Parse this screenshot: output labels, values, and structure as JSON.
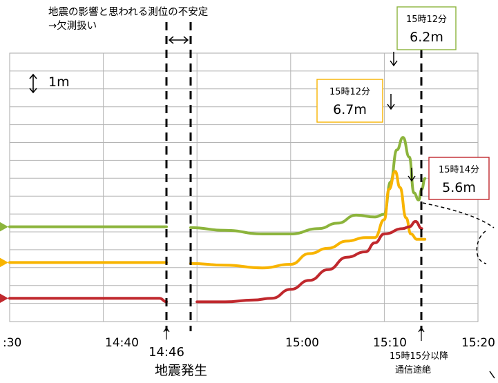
{
  "chart_data": {
    "type": "line",
    "xlim_minutes": [
      14.5,
      15.333
    ],
    "x_ticks": [
      {
        "label": ":30",
        "t": "14:30"
      },
      {
        "label": "14:40",
        "t": "14:40"
      },
      {
        "label": "15:00",
        "t": "15:00"
      },
      {
        "label": "15:10",
        "t": "15:10"
      },
      {
        "label": "15:20",
        "t": "15:20"
      }
    ],
    "scale_label": "1m",
    "series": [
      {
        "color": "#8cb43c",
        "points": [
          [
            "14:30",
            4.3
          ],
          [
            "14:47",
            4.3
          ],
          [
            "14:49",
            4.25
          ],
          [
            "14:53",
            4.1
          ],
          [
            "14:57",
            3.9
          ],
          [
            "15:00",
            3.9
          ],
          [
            "15:03",
            4.2
          ],
          [
            "15:05",
            4.5
          ],
          [
            "15:07",
            4.95
          ],
          [
            "15:09",
            4.85
          ],
          [
            "15:10",
            5.0
          ],
          [
            "15:10:40",
            6.8
          ],
          [
            "15:11:20",
            8.6
          ],
          [
            "15:12",
            9.3
          ],
          [
            "15:12:40",
            8.2
          ],
          [
            "15:13:10",
            6.2
          ],
          [
            "15:13:40",
            5.8
          ],
          [
            "15:14",
            6.4
          ],
          [
            "15:14:20",
            7.0
          ]
        ]
      },
      {
        "color": "#f8b400",
        "points": [
          [
            "14:30",
            2.3
          ],
          [
            "14:47",
            2.3
          ],
          [
            "14:49",
            2.25
          ],
          [
            "14:53",
            2.15
          ],
          [
            "14:57",
            2.0
          ],
          [
            "15:00",
            2.2
          ],
          [
            "15:02",
            2.8
          ],
          [
            "15:04",
            3.1
          ],
          [
            "15:06",
            3.5
          ],
          [
            "15:08",
            3.7
          ],
          [
            "15:09",
            3.7
          ],
          [
            "15:10",
            4.7
          ],
          [
            "15:10:30",
            6.4
          ],
          [
            "15:11:10",
            7.4
          ],
          [
            "15:11:40",
            6.5
          ],
          [
            "15:12:20",
            4.8
          ],
          [
            "15:12:50",
            3.9
          ],
          [
            "15:13:30",
            3.6
          ],
          [
            "15:14:20",
            3.6
          ]
        ]
      },
      {
        "color": "#c0282d",
        "points": [
          [
            "14:30",
            0.3
          ],
          [
            "14:46",
            0.3
          ],
          [
            "14:47",
            0.1
          ],
          [
            "14:50",
            0.1
          ],
          [
            "14:53",
            0.1
          ],
          [
            "14:56",
            0.2
          ],
          [
            "14:58",
            0.3
          ],
          [
            "15:00",
            0.8
          ],
          [
            "15:02",
            1.3
          ],
          [
            "15:04",
            1.9
          ],
          [
            "15:06",
            2.6
          ],
          [
            "15:08",
            2.9
          ],
          [
            "15:09",
            3.4
          ],
          [
            "15:10",
            3.9
          ],
          [
            "15:12",
            4.2
          ],
          [
            "15:12:40",
            4.3
          ],
          [
            "15:13:20",
            4.6
          ],
          [
            "15:14",
            4.2
          ]
        ]
      }
    ],
    "annotations": {
      "top_note_line1": "地震の影響と思われる測位の不安定",
      "top_note_line2": "→欠測扱い",
      "eq_time": "14:46",
      "eq_label": "地震発生",
      "comm_label_line1": "15時15分以降",
      "comm_label_line2": "通信途絶",
      "boxes": [
        {
          "time": "15時12分",
          "value": "6.2m",
          "color": "#8cb43c"
        },
        {
          "time": "15時12分",
          "value": "6.7m",
          "color": "#f8b400"
        },
        {
          "time": "15時14分",
          "value": "5.6m",
          "color": "#c0282d"
        }
      ]
    }
  }
}
